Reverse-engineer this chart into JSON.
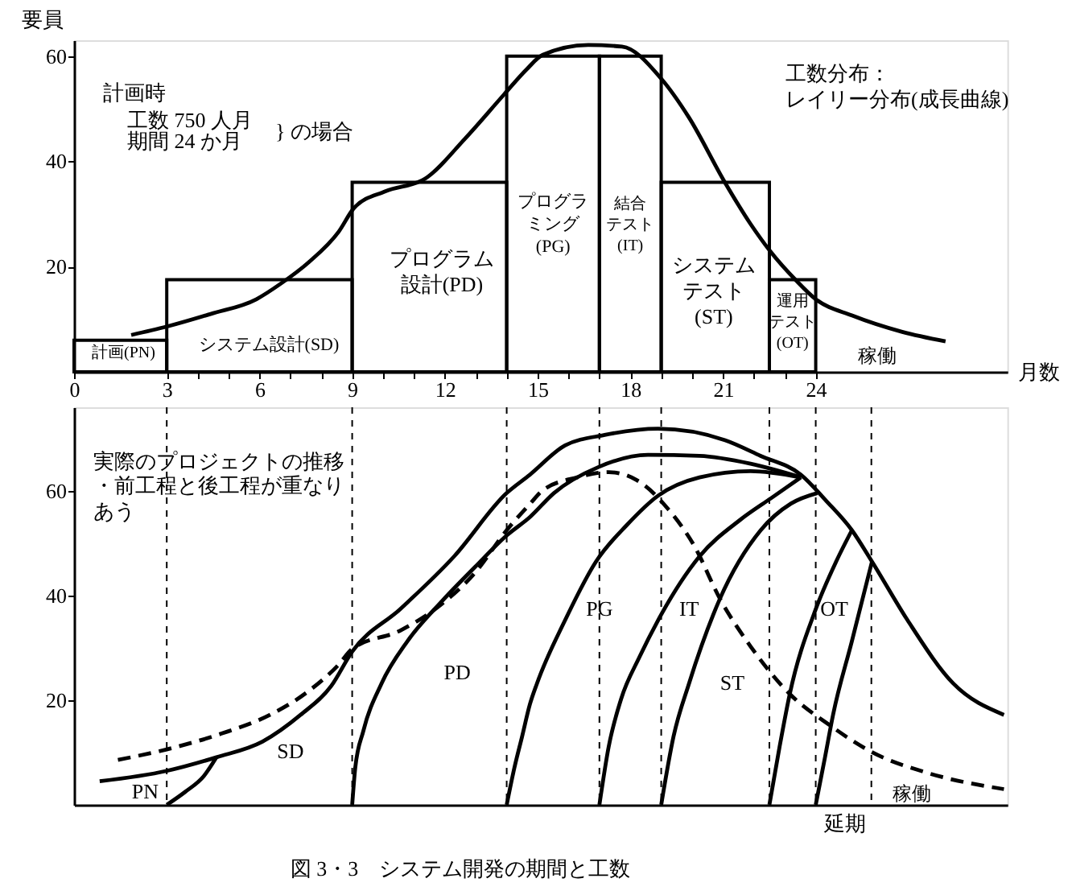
{
  "chart_data": [
    {
      "type": "histogram",
      "bins": [
        0,
        3,
        9,
        14,
        17,
        19,
        22.5,
        24
      ],
      "values": [
        6,
        17.5,
        36,
        60,
        60,
        36,
        17.5
      ],
      "color": "#000000",
      "series": [
        {
          "type": "line",
          "color": "#000000",
          "x": [
            1.85,
            3,
            4.42,
            5.9,
            6.7,
            7.59,
            8.56,
            9.07,
            10.07,
            11.36,
            12.65,
            13.9,
            14.65,
            15.16,
            16.64,
            17.73,
            19,
            19.9,
            21.05,
            21.89,
            22.53,
            23.36,
            24,
            25.18,
            26.8,
            28.2
          ],
          "values": [
            7.0,
            8.6,
            11.0,
            13.8,
            16.8,
            20.8,
            26.6,
            31.2,
            34.3,
            36.7,
            44.3,
            52.6,
            57.5,
            60.2,
            62.1,
            61.8,
            55.7,
            48.3,
            36.1,
            28.1,
            22.9,
            17.4,
            13.8,
            10.7,
            7.6,
            5.8
          ]
        }
      ],
      "xlim": [
        0,
        30.2
      ],
      "xticks": [
        0,
        3,
        {
          "value": 4,
          "label": null
        },
        {
          "value": 5,
          "label": null
        },
        6,
        {
          "value": 7,
          "label": null
        },
        {
          "value": 8,
          "label": null
        },
        9,
        {
          "value": 10,
          "label": null
        },
        {
          "value": 11,
          "label": null
        },
        12,
        {
          "value": 13,
          "label": null
        },
        {
          "value": 14,
          "label": null
        },
        15,
        {
          "value": 16,
          "label": null
        },
        {
          "value": 17,
          "label": null
        },
        18,
        {
          "value": 19,
          "label": null
        },
        {
          "value": 20,
          "label": null
        },
        21,
        {
          "value": 22,
          "label": null
        },
        {
          "value": 23,
          "label": null
        },
        24
      ],
      "ylim": [
        0,
        63
      ],
      "yticks": [
        20,
        40,
        60
      ],
      "xlabel": "月数",
      "ylabel": "要員",
      "annotations": [
        "計画時",
        "工数 750 人月",
        "期間 24 か月",
        "} の場合",
        "工数分布：レイリー分布(成長曲線)",
        "計画(PN)",
        "システム設計(SD)",
        "プログラム設計(PD)",
        "プログラミング(PG)",
        "結合テスト(IT)",
        "システムテスト(ST)",
        "運用テスト(OT)",
        "稼働"
      ]
    },
    {
      "type": "line",
      "tick_labels": "y",
      "xlim": [
        0,
        30.2
      ],
      "ylim": [
        0,
        76
      ],
      "yticks": [
        20,
        40,
        60
      ],
      "series": [
        {
          "color": "#000000",
          "x": [
            0.83,
            3,
            4.61,
            6.1,
            7.33,
            8.32,
            9,
            10.55,
            12.3,
            14,
            14.75,
            15.89,
            17.17,
            18.9,
            21.07,
            22.22,
            23.52,
            24.34,
            25.17,
            25.82,
            26.97,
            28.45,
            30.09
          ],
          "values": [
            4.5,
            6.5,
            9.1,
            12.1,
            17.2,
            22.7,
            29.3,
            37.4,
            47.5,
            59.6,
            63.1,
            68.7,
            70.7,
            71.9,
            69.7,
            66.7,
            63.1,
            58.1,
            52.5,
            46.5,
            35.3,
            23.2,
            17.2
          ]
        },
        {
          "color": "#000000",
          "x": [
            3,
            3.6,
            4.2,
            4.61
          ],
          "values": [
            0,
            2.5,
            5.5,
            9.1
          ]
        },
        {
          "color": "#000000",
          "x": [
            9,
            9.1,
            9.36,
            9.95,
            10.79,
            11.9,
            12.98,
            14,
            14.75,
            15.53,
            16.98,
            18.57,
            20.24,
            21.89,
            23.52
          ],
          "values": [
            0,
            7.1,
            14.1,
            23.2,
            31.3,
            38.9,
            45.5,
            51.5,
            55,
            59.6,
            64.6,
            66.9,
            66.7,
            65.2,
            62.6
          ]
        },
        {
          "color": "#000000",
          "x": [
            14,
            14.25,
            14.5,
            14.75,
            14.98,
            15.89,
            16.89,
            17.89,
            18.9,
            20.24,
            21.89,
            23.52
          ],
          "values": [
            0,
            7.1,
            13.1,
            19.2,
            23.2,
            35.3,
            46.5,
            53.5,
            59.1,
            62.6,
            63.8,
            62.6
          ]
        },
        {
          "color": "#000000",
          "x": [
            17,
            17.3,
            17.7,
            18.3,
            18.9,
            20.24,
            21.56,
            22.55,
            23.52
          ],
          "values": [
            0,
            11.1,
            20.2,
            28.3,
            35.3,
            47.5,
            54.5,
            58.6,
            62.6
          ]
        },
        {
          "color": "#000000",
          "x": [
            19,
            19.4,
            19.9,
            20.9,
            22.22,
            23.2,
            24.05
          ],
          "values": [
            0,
            13.1,
            23.2,
            39.4,
            52.5,
            57.6,
            59.6
          ]
        },
        {
          "color": "#000000",
          "x": [
            22.5,
            22.83,
            23.16,
            24,
            24.66,
            25.17
          ],
          "values": [
            0,
            11.1,
            21.2,
            37.4,
            46.5,
            52.5
          ]
        },
        {
          "color": "#000000",
          "x": [
            24,
            24.3,
            24.56,
            25.17,
            25.82
          ],
          "values": [
            0,
            9.1,
            17.2,
            31.3,
            46.5
          ]
        },
        {
          "color": "#000000",
          "line_style": "dashed",
          "x": [
            1.42,
            3,
            4.76,
            6.34,
            7.58,
            8.56,
            9,
            10.55,
            11.9,
            12.98,
            14,
            14.75,
            15.16,
            16.28,
            17.3,
            18.2,
            19.23,
            20.07,
            20.9,
            21.89,
            23.16,
            24.46,
            25.81,
            27.62,
            30.09
          ],
          "values": [
            8.6,
            10.6,
            13.6,
            17.2,
            21.7,
            26.8,
            29.8,
            33.3,
            38.4,
            44.4,
            52.5,
            57.5,
            60.1,
            62.6,
            63.6,
            62.1,
            56.5,
            49.5,
            39.4,
            30.3,
            21.2,
            15.2,
            10.1,
            6.1,
            3.0
          ]
        }
      ],
      "ref_lines": [
        {
          "axis": "x",
          "value": 3,
          "color": "#000000",
          "line_style": "dashed"
        },
        {
          "axis": "x",
          "value": 9,
          "color": "#000000",
          "line_style": "dashed"
        },
        {
          "axis": "x",
          "value": 14,
          "color": "#000000",
          "line_style": "dashed"
        },
        {
          "axis": "x",
          "value": 17,
          "color": "#000000",
          "line_style": "dashed"
        },
        {
          "axis": "x",
          "value": 19,
          "color": "#000000",
          "line_style": "dashed"
        },
        {
          "axis": "x",
          "value": 22.5,
          "color": "#000000",
          "line_style": "dashed"
        },
        {
          "axis": "x",
          "value": 24,
          "color": "#000000",
          "line_style": "dashed"
        },
        {
          "axis": "x",
          "value": 25.8,
          "color": "#000000",
          "line_style": "dashed"
        }
      ],
      "annotations": [
        "実際のプロジェクトの推移",
        "・前工程と後工程が重なりあう",
        "延期",
        "図 3・3　システム開発の期間と工数",
        "PN",
        "SD",
        "PD",
        "PG",
        "IT",
        "ST",
        "OT",
        "稼働"
      ]
    }
  ]
}
